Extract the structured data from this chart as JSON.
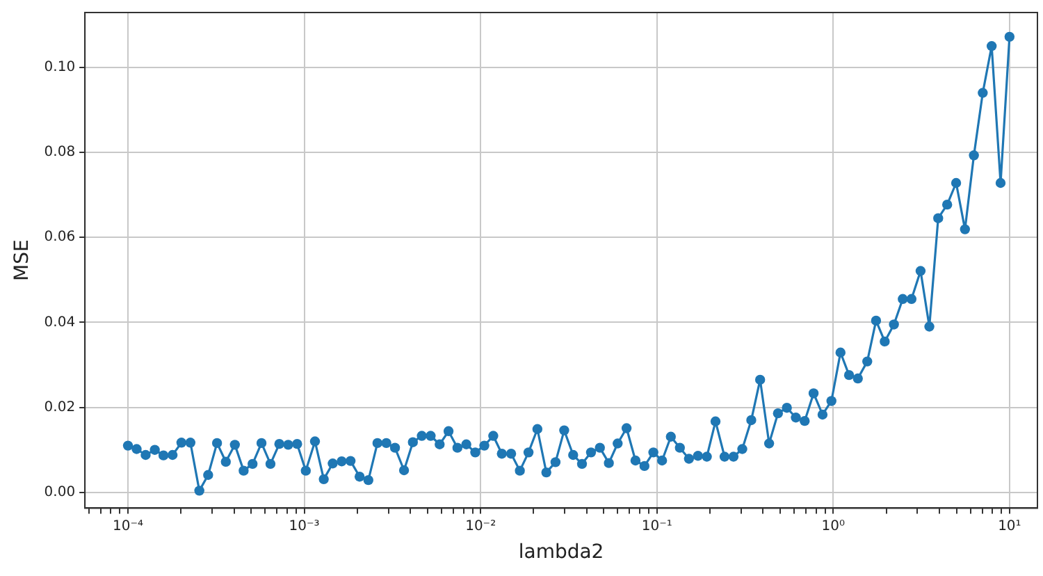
{
  "chart_data": {
    "type": "line",
    "xlabel": "lambda2",
    "ylabel": "MSE",
    "log": "x",
    "grid": true,
    "marker": "circle",
    "line_style": "solid",
    "xlim": [
      5.7e-05,
      14.4
    ],
    "ylim": [
      -0.0037,
      0.1129
    ],
    "xticks": [
      {
        "value": 6e-05,
        "label": null
      },
      {
        "value": 7e-05,
        "label": null
      },
      {
        "value": 8e-05,
        "label": null
      },
      {
        "value": 9e-05,
        "label": null
      },
      {
        "value": 0.0001,
        "label": "10⁻⁴"
      },
      {
        "value": 0.0002,
        "label": null
      },
      {
        "value": 0.0003,
        "label": null
      },
      {
        "value": 0.0004,
        "label": null
      },
      {
        "value": 0.0005,
        "label": null
      },
      {
        "value": 0.0006,
        "label": null
      },
      {
        "value": 0.0007,
        "label": null
      },
      {
        "value": 0.0008,
        "label": null
      },
      {
        "value": 0.0009,
        "label": null
      },
      {
        "value": 0.001,
        "label": "10⁻³"
      },
      {
        "value": 0.002,
        "label": null
      },
      {
        "value": 0.003,
        "label": null
      },
      {
        "value": 0.004,
        "label": null
      },
      {
        "value": 0.005,
        "label": null
      },
      {
        "value": 0.006,
        "label": null
      },
      {
        "value": 0.007,
        "label": null
      },
      {
        "value": 0.008,
        "label": null
      },
      {
        "value": 0.009,
        "label": null
      },
      {
        "value": 0.01,
        "label": "10⁻²"
      },
      {
        "value": 0.02,
        "label": null
      },
      {
        "value": 0.03,
        "label": null
      },
      {
        "value": 0.04,
        "label": null
      },
      {
        "value": 0.05,
        "label": null
      },
      {
        "value": 0.06,
        "label": null
      },
      {
        "value": 0.07,
        "label": null
      },
      {
        "value": 0.08,
        "label": null
      },
      {
        "value": 0.09,
        "label": null
      },
      {
        "value": 0.1,
        "label": "10⁻¹"
      },
      {
        "value": 0.2,
        "label": null
      },
      {
        "value": 0.3,
        "label": null
      },
      {
        "value": 0.4,
        "label": null
      },
      {
        "value": 0.5,
        "label": null
      },
      {
        "value": 0.6,
        "label": null
      },
      {
        "value": 0.7,
        "label": null
      },
      {
        "value": 0.8,
        "label": null
      },
      {
        "value": 0.9,
        "label": null
      },
      {
        "value": 1,
        "label": "10⁰"
      },
      {
        "value": 2,
        "label": null
      },
      {
        "value": 3,
        "label": null
      },
      {
        "value": 4,
        "label": null
      },
      {
        "value": 5,
        "label": null
      },
      {
        "value": 6,
        "label": null
      },
      {
        "value": 7,
        "label": null
      },
      {
        "value": 8,
        "label": null
      },
      {
        "value": 9,
        "label": null
      },
      {
        "value": 10,
        "label": "10¹"
      }
    ],
    "yticks": [
      {
        "value": 0,
        "label": "0.00"
      },
      {
        "value": 0.02,
        "label": "0.02"
      },
      {
        "value": 0.04,
        "label": "0.04"
      },
      {
        "value": 0.06,
        "label": "0.06"
      },
      {
        "value": 0.08,
        "label": "0.08"
      },
      {
        "value": 0.1,
        "label": "0.10"
      }
    ],
    "series": [
      {
        "color": "#1f77b4",
        "x": [
          0.0001,
          0.000112,
          0.000126,
          0.000142,
          0.000159,
          0.000179,
          0.000201,
          0.000226,
          0.000254,
          0.000285,
          0.00032,
          0.000359,
          0.000404,
          0.000453,
          0.000509,
          0.000572,
          0.000643,
          0.000722,
          0.000811,
          0.000911,
          0.00102,
          0.00115,
          0.00129,
          0.00145,
          0.00163,
          0.00183,
          0.00206,
          0.00231,
          0.0026,
          0.00292,
          0.00327,
          0.00368,
          0.00413,
          0.00464,
          0.00521,
          0.00586,
          0.00658,
          0.00739,
          0.0083,
          0.00933,
          0.0105,
          0.0118,
          0.0132,
          0.0149,
          0.0167,
          0.0187,
          0.021,
          0.0236,
          0.0266,
          0.0298,
          0.0335,
          0.0376,
          0.0423,
          0.0475,
          0.0534,
          0.0599,
          0.0673,
          0.0756,
          0.085,
          0.0955,
          0.107,
          0.12,
          0.135,
          0.152,
          0.171,
          0.192,
          0.215,
          0.242,
          0.272,
          0.305,
          0.343,
          0.385,
          0.433,
          0.486,
          0.546,
          0.614,
          0.689,
          0.774,
          0.87,
          0.977,
          1.1,
          1.23,
          1.38,
          1.56,
          1.75,
          1.96,
          2.21,
          2.48,
          2.78,
          3.13,
          3.51,
          3.94,
          4.43,
          4.98,
          5.59,
          6.28,
          7.05,
          7.92,
          8.9,
          10
        ],
        "values": [
          0.011,
          0.0102,
          0.0088,
          0.01,
          0.0087,
          0.0088,
          0.0117,
          0.0117,
          0.0004,
          0.0041,
          0.0116,
          0.0072,
          0.0112,
          0.0051,
          0.0067,
          0.0116,
          0.0067,
          0.0114,
          0.0112,
          0.0114,
          0.0051,
          0.012,
          0.0031,
          0.0068,
          0.0073,
          0.0074,
          0.0037,
          0.0029,
          0.0116,
          0.0116,
          0.0105,
          0.0052,
          0.0118,
          0.0133,
          0.0133,
          0.0113,
          0.0144,
          0.0105,
          0.0113,
          0.0094,
          0.011,
          0.0133,
          0.0091,
          0.0091,
          0.0051,
          0.0094,
          0.0149,
          0.0047,
          0.0071,
          0.0146,
          0.0088,
          0.0067,
          0.0094,
          0.0105,
          0.0069,
          0.0115,
          0.0151,
          0.0075,
          0.0062,
          0.0094,
          0.0075,
          0.0131,
          0.0105,
          0.0079,
          0.0086,
          0.0084,
          0.0167,
          0.0084,
          0.0084,
          0.0102,
          0.017,
          0.0265,
          0.0115,
          0.0186,
          0.0199,
          0.0176,
          0.0168,
          0.0233,
          0.0183,
          0.0215,
          0.0329,
          0.0276,
          0.0268,
          0.0308,
          0.0404,
          0.0355,
          0.0395,
          0.0455,
          0.0455,
          0.0521,
          0.039,
          0.0645,
          0.0677,
          0.0728,
          0.0619,
          0.0793,
          0.094,
          0.105,
          0.0728,
          0.1072
        ]
      }
    ]
  }
}
